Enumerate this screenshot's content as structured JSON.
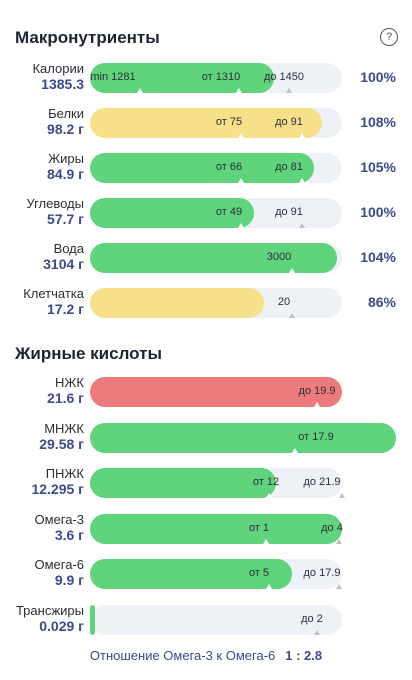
{
  "macro_title": "Макронутриенты",
  "help_symbol": "?",
  "fatty_title": "Жирные кислоты",
  "macros": [
    {
      "name": "Калории",
      "value": "1385.3",
      "fill": 0.73,
      "color": "green",
      "pct": "100%",
      "labels": [
        {
          "text": "min 1281",
          "pos": 0.09
        },
        {
          "text": "от 1310",
          "pos": 0.52
        },
        {
          "text": "до 1450",
          "pos": 0.77
        }
      ],
      "ticks": [
        {
          "pos": 0.2
        },
        {
          "pos": 0.59
        },
        {
          "pos": 0.79,
          "grey": true
        }
      ]
    },
    {
      "name": "Белки",
      "value": "98.2 г",
      "fill": 0.92,
      "color": "yellow",
      "pct": "108%",
      "labels": [
        {
          "text": "от 75",
          "pos": 0.55
        },
        {
          "text": "до 91",
          "pos": 0.79
        }
      ],
      "ticks": [
        {
          "pos": 0.6
        },
        {
          "pos": 0.84
        }
      ]
    },
    {
      "name": "Жиры",
      "value": "84.9 г",
      "fill": 0.89,
      "color": "green",
      "pct": "105%",
      "labels": [
        {
          "text": "от 66",
          "pos": 0.55
        },
        {
          "text": "до 81",
          "pos": 0.79
        }
      ],
      "ticks": [
        {
          "pos": 0.6
        },
        {
          "pos": 0.84
        }
      ]
    },
    {
      "name": "Углеводы",
      "value": "57.7 г",
      "fill": 0.65,
      "color": "green",
      "pct": "100%",
      "labels": [
        {
          "text": "от 49",
          "pos": 0.55
        },
        {
          "text": "до 91",
          "pos": 0.79
        }
      ],
      "ticks": [
        {
          "pos": 0.6
        },
        {
          "pos": 0.84,
          "grey": true
        }
      ]
    },
    {
      "name": "Вода",
      "value": "3104 г",
      "fill": 0.98,
      "color": "green",
      "pct": "104%",
      "labels": [
        {
          "text": "3000",
          "pos": 0.75
        }
      ],
      "ticks": [
        {
          "pos": 0.8
        }
      ]
    },
    {
      "name": "Клетчатка",
      "value": "17.2 г",
      "fill": 0.69,
      "color": "yellow",
      "pct": "86%",
      "labels": [
        {
          "text": "20",
          "pos": 0.77
        }
      ],
      "ticks": [
        {
          "pos": 0.8,
          "grey": true
        }
      ]
    }
  ],
  "fatty": [
    {
      "name": "НЖК",
      "value": "21.6 г",
      "fill": 1.0,
      "color": "red",
      "full": false,
      "labels": [
        {
          "text": "до 19.9",
          "pos": 0.9
        }
      ],
      "ticks": [
        {
          "pos": 0.9
        }
      ]
    },
    {
      "name": "МНЖК",
      "value": "29.58 г",
      "fill": 1.0,
      "color": "green",
      "full": true,
      "labels": [
        {
          "text": "от 17.9",
          "pos": 0.74
        }
      ],
      "ticks": [
        {
          "pos": 0.67
        }
      ]
    },
    {
      "name": "ПНЖК",
      "value": "12.295 г",
      "fill": 0.74,
      "color": "green",
      "full": false,
      "labels": [
        {
          "text": "от 12",
          "pos": 0.7
        },
        {
          "text": "до 21.9",
          "pos": 0.92
        }
      ],
      "ticks": [
        {
          "pos": 0.71
        },
        {
          "pos": 1.0,
          "grey": true
        }
      ]
    },
    {
      "name": "Омега-3",
      "value": "3.6 г",
      "fill": 1.0,
      "color": "green",
      "full": false,
      "labels": [
        {
          "text": "от 1",
          "pos": 0.67
        },
        {
          "text": "до 4",
          "pos": 0.96
        }
      ],
      "ticks": [
        {
          "pos": 0.7
        },
        {
          "pos": 0.99,
          "grey": true
        }
      ]
    },
    {
      "name": "Омега-6",
      "value": "9.9 г",
      "fill": 0.8,
      "color": "green",
      "full": false,
      "labels": [
        {
          "text": "от 5",
          "pos": 0.67
        },
        {
          "text": "до 17.9",
          "pos": 0.92
        }
      ],
      "ticks": [
        {
          "pos": 0.71
        },
        {
          "pos": 0.99,
          "grey": true
        }
      ]
    },
    {
      "name": "Трансжиры",
      "value": "0.029 г",
      "fill": 0.02,
      "color": "green",
      "full": false,
      "labels": [
        {
          "text": "до 2",
          "pos": 0.88
        }
      ],
      "ticks": [
        {
          "pos": 0.9,
          "grey": true
        }
      ]
    }
  ],
  "ratio": {
    "label": "Отношение Омега-3 к Омега-6",
    "value": "1 : 2.8"
  }
}
